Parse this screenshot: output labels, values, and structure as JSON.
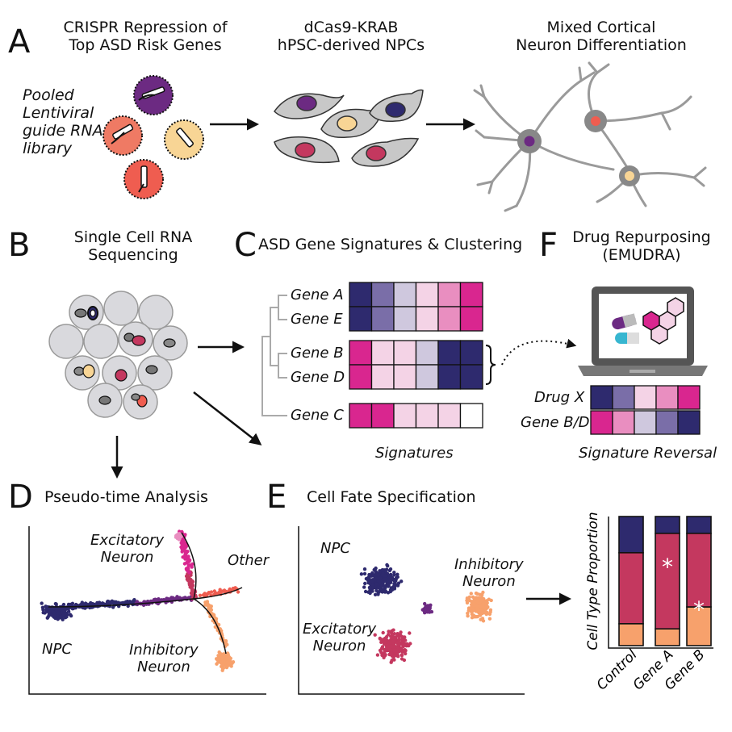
{
  "panels": {
    "A": {
      "letter": "A",
      "titles": [
        "CRISPR Repression of\nTop ASD Risk Genes",
        "dCas9-KRAB\nhPSC-derived NPCs",
        "Mixed Cortical\nNeuron Differentiation"
      ],
      "library_label": "Pooled\nLentiviral\nguide RNA\nlibrary"
    },
    "B": {
      "letter": "B",
      "title": "Single Cell RNA\nSequencing"
    },
    "C": {
      "letter": "C",
      "title": "ASD Gene Signatures & Clustering",
      "genes": [
        "Gene A",
        "Gene E",
        "Gene B",
        "Gene D",
        "Gene C"
      ],
      "footer": "Signatures"
    },
    "F": {
      "letter": "F",
      "title": "Drug Repurposing\n(EMUDRA)",
      "rows": [
        "Drug X",
        "Gene B/D"
      ],
      "footer": "Signature Reversal"
    },
    "D": {
      "letter": "D",
      "title": "Pseudo-time Analysis",
      "labels": {
        "excitatory": "Excitatory\nNeuron",
        "other": "Other",
        "npc": "NPC",
        "inhibitory": "Inhibitory\nNeuron"
      }
    },
    "E": {
      "letter": "E",
      "title": "Cell Fate Specification",
      "labels": {
        "npc": "NPC",
        "inhibitory": "Inhibitory\nNeuron",
        "excitatory": "Excitatory\nNeuron"
      }
    }
  },
  "colors": {
    "navy": "#2e2a6e",
    "purple": "#6c2a82",
    "magenta": "#d9268f",
    "pink": "#e98ec0",
    "lightpink": "#f4d3e6",
    "lavender": "#cfc8de",
    "mauve": "#7a6ea8",
    "red": "#c4385f",
    "coral": "#ef5d50",
    "orange": "#f7a16c",
    "yellow": "#f8d595"
  },
  "heatmap": {
    "rows": [
      [
        "#2e2a6e",
        "#7a6ea8",
        "#cfc8de",
        "#f4d3e6",
        "#e98ec0",
        "#d9268f"
      ],
      [
        "#2e2a6e",
        "#7a6ea8",
        "#cfc8de",
        "#f4d3e6",
        "#e98ec0",
        "#d9268f"
      ],
      [
        "#d9268f",
        "#f4d3e6",
        "#f4d3e6",
        "#cfc8de",
        "#2e2a6e",
        "#2e2a6e"
      ],
      [
        "#d9268f",
        "#f4d3e6",
        "#f4d3e6",
        "#cfc8de",
        "#2e2a6e",
        "#2e2a6e"
      ],
      [
        "#d9268f",
        "#d9268f",
        "#f4d3e6",
        "#f4d3e6",
        "#f4d3e6",
        "#ffffff"
      ]
    ],
    "drug_rows": [
      [
        "#2e2a6e",
        "#7a6ea8",
        "#f4d3e6",
        "#e98ec0",
        "#d9268f"
      ],
      [
        "#d9268f",
        "#e98ec0",
        "#cfc8de",
        "#7a6ea8",
        "#2e2a6e"
      ]
    ]
  },
  "chart_data": {
    "type": "bar",
    "stacked": true,
    "categories": [
      "Control",
      "Gene A",
      "Gene B"
    ],
    "ylabel": "Cell Type Proportion",
    "series": [
      {
        "values": [
          0.17,
          0.13,
          0.3
        ],
        "color": "#f7a16c"
      },
      {
        "values": [
          0.55,
          0.74,
          0.57
        ],
        "color": "#c4385f"
      },
      {
        "values": [
          0.28,
          0.13,
          0.13
        ],
        "color": "#2e2a6e"
      }
    ],
    "annotations": [
      {
        "category": "Gene A",
        "text": "*"
      },
      {
        "category": "Gene B",
        "text": "*"
      }
    ]
  }
}
